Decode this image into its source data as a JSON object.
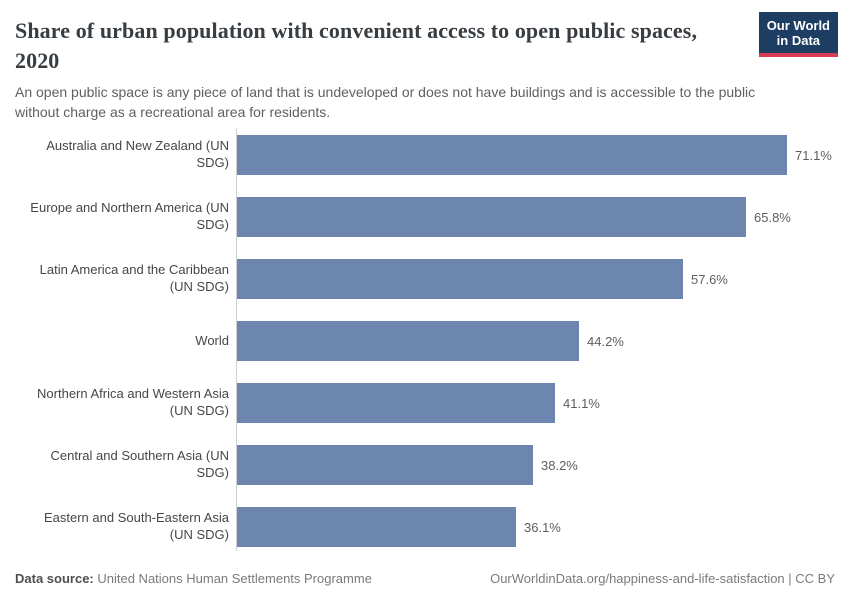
{
  "header": {
    "title": "Share of urban population with convenient access to open public spaces, 2020",
    "subtitle": "An open public space is any piece of land that is undeveloped or does not have buildings and is accessible to the public without charge as a recreational area for residents.",
    "logo": {
      "line1": "Our World",
      "line2": "in Data"
    }
  },
  "chart_data": {
    "type": "bar",
    "orientation": "horizontal",
    "title": "Share of urban population with convenient access to open public spaces, 2020",
    "subtitle": "An open public space is any piece of land that is undeveloped or does not have buildings and is accessible to the public without charge as a recreational area for residents.",
    "categories": [
      "Australia and New Zealand (UN SDG)",
      "Europe and Northern America (UN SDG)",
      "Latin America and the Caribbean (UN SDG)",
      "World",
      "Northern Africa and Western Asia (UN SDG)",
      "Central and Southern Asia (UN SDG)",
      "Eastern and South-Eastern Asia (UN SDG)"
    ],
    "values": [
      71.1,
      65.8,
      57.6,
      44.2,
      41.1,
      38.2,
      36.1
    ],
    "value_labels": [
      "71.1%",
      "65.8%",
      "57.6%",
      "44.2%",
      "41.1%",
      "38.2%",
      "36.1%"
    ],
    "xlabel": "",
    "ylabel": "",
    "xlim": [
      0,
      100
    ],
    "unit": "%",
    "grid": false,
    "legend": false,
    "bar_color": "#6c86b0"
  },
  "colors": {
    "bar": "#6c86b0",
    "axis_line": "#cfcfcf",
    "title_text": "#383d42",
    "subtitle_text": "#5f5f5f",
    "logo_background": "#1d3d63",
    "logo_accent": "#d73c50"
  },
  "footer": {
    "source_label": "Data source:",
    "source_text": " United Nations Human Settlements Programme",
    "link_text": "OurWorldinData.org/happiness-and-life-satisfaction | CC BY"
  }
}
